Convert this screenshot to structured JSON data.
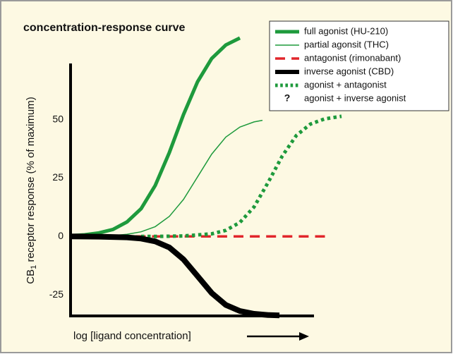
{
  "chart_data": {
    "type": "line",
    "title": "concentration-response curve",
    "ylabel": [
      "CB",
      "1",
      " receptor response (% of maximum)"
    ],
    "xlabel": "log [ligand concentration]",
    "xlim": [
      0,
      100
    ],
    "ylim": [
      -34,
      74
    ],
    "yticks": [
      -25,
      0,
      25,
      50
    ],
    "series": [
      {
        "name": "full agonist (HU-210)",
        "color": "#1e9a3c",
        "width": 5,
        "dash": "solid",
        "x": [
          0,
          5,
          10,
          15,
          20,
          25,
          30,
          35,
          40,
          45,
          50,
          55,
          60
        ],
        "values": [
          0.3,
          0.7,
          1.5,
          3,
          6.2,
          11.9,
          21.8,
          35.9,
          52.1,
          66.2,
          76.1,
          81.9,
          84.9
        ]
      },
      {
        "name": "partial agonsit (THC)",
        "color": "#1e9a3c",
        "width": 1.5,
        "dash": "solid",
        "x": [
          0,
          5,
          10,
          15,
          20,
          25,
          30,
          35,
          40,
          45,
          50,
          55,
          60,
          65,
          68
        ],
        "values": [
          0,
          0.1,
          0.2,
          0.4,
          0.9,
          2,
          4.2,
          8.6,
          15.8,
          25.5,
          35.2,
          42.5,
          46.8,
          49,
          49.7
        ]
      },
      {
        "name": "antagonist (rimonabant)",
        "color": "#e1262b",
        "width": 3.5,
        "dash": "dashed",
        "x": [
          0,
          91
        ],
        "values": [
          0,
          0
        ]
      },
      {
        "name": "inverse agonist (CBD)",
        "color": "#000000",
        "width": 8,
        "dash": "solid",
        "x": [
          0,
          10,
          20,
          25,
          30,
          35,
          40,
          45,
          50,
          55,
          60,
          65,
          70,
          74
        ],
        "values": [
          0,
          -0.1,
          -0.4,
          -0.9,
          -2.1,
          -4.7,
          -9.8,
          -17,
          -24.2,
          -29.3,
          -31.9,
          -33.1,
          -33.6,
          -33.8
        ]
      },
      {
        "name": "agonist + antagonist",
        "color": "#1e9a3c",
        "width": 5,
        "dash": "dotted",
        "x": [
          25,
          30,
          40,
          50,
          55,
          60,
          65,
          70,
          75,
          80,
          85,
          90,
          96
        ],
        "values": [
          0,
          0,
          0.2,
          1.1,
          2.6,
          6,
          12.6,
          23.1,
          34.4,
          43.2,
          48.1,
          50.3,
          51.4
        ]
      }
    ],
    "legend_extra": {
      "symbol": "?",
      "label": "agonist + inverse agonist"
    }
  }
}
